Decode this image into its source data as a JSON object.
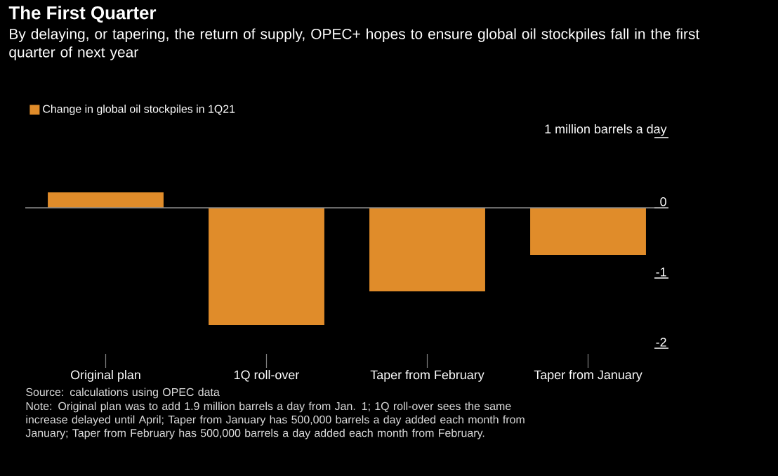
{
  "chart_data": {
    "type": "bar",
    "title": "The First Quarter",
    "subtitle": "By delaying, or tapering, the return of supply, OPEC+ hopes to ensure global oil stockpiles fall in the first quarter of next year",
    "categories": [
      "Original plan",
      "1Q roll-over",
      "Taper from February",
      "Taper from January"
    ],
    "series": [
      {
        "name": "Change in global oil stockpiles in 1Q21",
        "color": "#e08c2a",
        "values": [
          0.22,
          -1.67,
          -1.19,
          -0.67
        ]
      }
    ],
    "ylim": [
      -2,
      1
    ],
    "yticks": [
      {
        "value": 1,
        "label": "1 million barrels a day"
      },
      0,
      -1,
      -2
    ],
    "legend": "top left",
    "ref_lines": [
      {
        "axis": "y",
        "value": 0,
        "color": "#8c8c8c"
      }
    ],
    "annotations": [
      "Source: calculations using OPEC data",
      "Note: Original plan was to add 1.9 million barrels a day from Jan. 1; 1Q roll-over sees the same increase delayed until April; Taper from January has 500,000 barrels a day added each month from January; Taper from February has 500,000 barrels a day added each month from February."
    ]
  }
}
